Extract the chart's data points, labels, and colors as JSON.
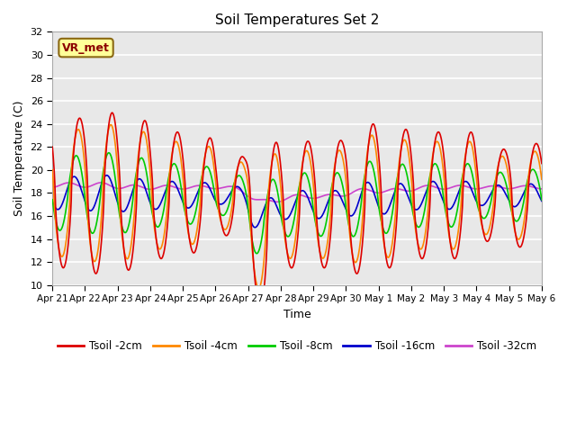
{
  "title": "Soil Temperatures Set 2",
  "xlabel": "Time",
  "ylabel": "Soil Temperature (C)",
  "ylim": [
    10,
    32
  ],
  "yticks": [
    10,
    12,
    14,
    16,
    18,
    20,
    22,
    24,
    26,
    28,
    30,
    32
  ],
  "x_tick_labels": [
    "Apr 21",
    "Apr 22",
    "Apr 23",
    "Apr 24",
    "Apr 25",
    "Apr 26",
    "Apr 27",
    "Apr 28",
    "Apr 29",
    "Apr 30",
    "May 1",
    "May 2",
    "May 3",
    "May 4",
    "May 5",
    "May 6"
  ],
  "annotation_text": "VR_met",
  "colors": {
    "Tsoil -2cm": "#dd0000",
    "Tsoil -4cm": "#ff8800",
    "Tsoil -8cm": "#00cc00",
    "Tsoil -16cm": "#0000cc",
    "Tsoil -32cm": "#cc44cc"
  },
  "bg_color": "#e8e8e8",
  "fig_bg_color": "#ffffff",
  "linewidth": 1.2
}
